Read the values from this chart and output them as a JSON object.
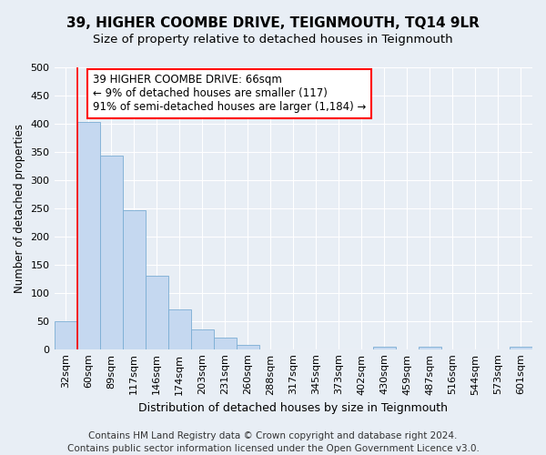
{
  "title": "39, HIGHER COOMBE DRIVE, TEIGNMOUTH, TQ14 9LR",
  "subtitle": "Size of property relative to detached houses in Teignmouth",
  "xlabel": "Distribution of detached houses by size in Teignmouth",
  "ylabel": "Number of detached properties",
  "categories": [
    "32sqm",
    "60sqm",
    "89sqm",
    "117sqm",
    "146sqm",
    "174sqm",
    "203sqm",
    "231sqm",
    "260sqm",
    "288sqm",
    "317sqm",
    "345sqm",
    "373sqm",
    "402sqm",
    "430sqm",
    "459sqm",
    "487sqm",
    "516sqm",
    "544sqm",
    "573sqm",
    "601sqm"
  ],
  "values": [
    50,
    403,
    343,
    247,
    130,
    70,
    35,
    20,
    7,
    0,
    0,
    0,
    0,
    0,
    5,
    0,
    5,
    0,
    0,
    0,
    5
  ],
  "bar_color": "#c5d8f0",
  "bar_edge_color": "#7aadd4",
  "property_line_x": 1.0,
  "annotation_text": "39 HIGHER COOMBE DRIVE: 66sqm\n← 9% of detached houses are smaller (117)\n91% of semi-detached houses are larger (1,184) →",
  "annotation_box_color": "white",
  "annotation_box_edge_color": "red",
  "vline_color": "red",
  "ylim": [
    0,
    500
  ],
  "yticks": [
    0,
    50,
    100,
    150,
    200,
    250,
    300,
    350,
    400,
    450,
    500
  ],
  "background_color": "#e8eef5",
  "grid_color": "white",
  "footer": "Contains HM Land Registry data © Crown copyright and database right 2024.\nContains public sector information licensed under the Open Government Licence v3.0.",
  "title_fontsize": 11,
  "subtitle_fontsize": 9.5,
  "xlabel_fontsize": 9,
  "ylabel_fontsize": 8.5,
  "tick_fontsize": 8,
  "annotation_fontsize": 8.5,
  "footer_fontsize": 7.5
}
